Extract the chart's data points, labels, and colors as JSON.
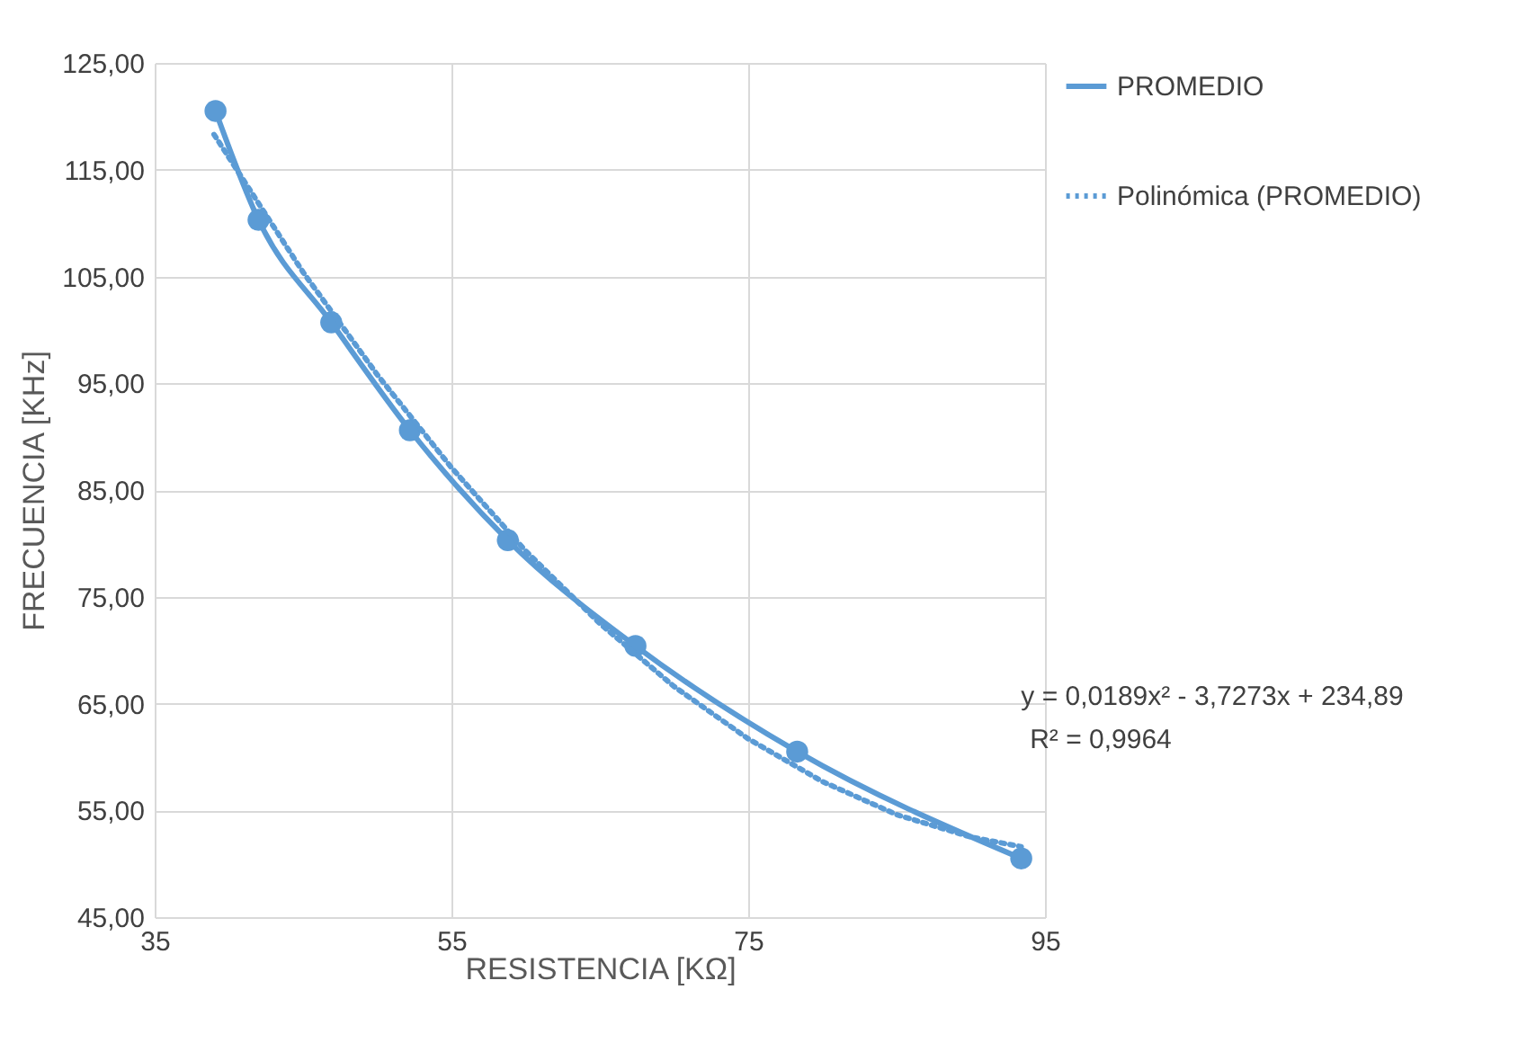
{
  "chart_data": {
    "type": "line",
    "xlabel": "RESISTENCIA [KΩ]",
    "ylabel": "FRECUENCIA [KHz]",
    "xlim": [
      35,
      95
    ],
    "xticks": [
      35,
      55,
      75,
      95
    ],
    "ylim": [
      45,
      125
    ],
    "yticks": [
      {
        "value": 45,
        "label": "45,00"
      },
      {
        "value": 55,
        "label": "55,00"
      },
      {
        "value": 65,
        "label": "65,00"
      },
      {
        "value": 75,
        "label": "75,00"
      },
      {
        "value": 85,
        "label": "85,00"
      },
      {
        "value": 95,
        "label": "95,00"
      },
      {
        "value": 105,
        "label": "105,00"
      },
      {
        "value": 115,
        "label": "115,00"
      },
      {
        "value": 125,
        "label": "125,00"
      }
    ],
    "grid": true,
    "legend": "right",
    "marker": "circle",
    "line_style": "solid",
    "series": [
      {
        "name": "PROMEDIO",
        "color": "#5b9bd5",
        "x": [
          39.1,
          42.0,
          46.9,
          52.2,
          58.8,
          67.4,
          78.3,
          93.4
        ],
        "values": [
          120.5,
          110.3,
          100.7,
          90.6,
          80.3,
          70.4,
          60.5,
          50.5
        ]
      },
      {
        "name": "Polinómica (PROMEDIO)",
        "color": "#5b9bd5",
        "type": "line",
        "line_style": "dotted",
        "marker": "none",
        "x": [
          39,
          45,
          50,
          55,
          60,
          65,
          70,
          75,
          80,
          85,
          90,
          93.4
        ],
        "values": [
          118.3,
          105.4,
          95.8,
          87.1,
          79.3,
          72.5,
          66.6,
          61.7,
          57.7,
          54.6,
          52.5,
          51.6
        ]
      }
    ],
    "annotations": [
      "y = 0,0189x² - 3,7273x + 234,89",
      "R² = 0,9964"
    ]
  }
}
